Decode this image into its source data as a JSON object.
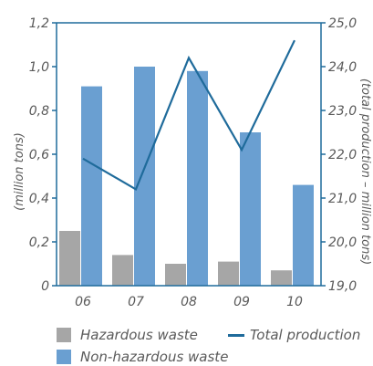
{
  "chart_data": {
    "type": "bar",
    "categories": [
      "06",
      "07",
      "08",
      "09",
      "10"
    ],
    "series": [
      {
        "name": "Hazardous waste",
        "type": "bar",
        "axis": "left",
        "color": "#a6a6a6",
        "values": [
          0.25,
          0.14,
          0.1,
          0.11,
          0.07
        ]
      },
      {
        "name": "Non-hazardous waste",
        "type": "bar",
        "axis": "left",
        "color": "#6a9fd1",
        "values": [
          0.91,
          1.0,
          0.98,
          0.7,
          0.46
        ]
      },
      {
        "name": "Total production",
        "type": "line",
        "axis": "right",
        "color": "#1f6b9b",
        "values": [
          21.9,
          21.2,
          24.2,
          22.1,
          24.6
        ]
      }
    ],
    "ylabel": "(million tons)",
    "y2label": "(total production – million tons)",
    "ylim": [
      0,
      1.2
    ],
    "y2lim": [
      19.0,
      25.0
    ],
    "yticks": [
      "0",
      "0,2",
      "0,4",
      "0,6",
      "0,8",
      "1,0",
      "1,2"
    ],
    "y2ticks": [
      "19,0",
      "20,0",
      "21,0",
      "22,0",
      "23,0",
      "24,0",
      "25,0"
    ],
    "legend_position": "bottom"
  },
  "colors": {
    "axis": "#1f6b9b",
    "tick_text": "#5a5a5a"
  }
}
